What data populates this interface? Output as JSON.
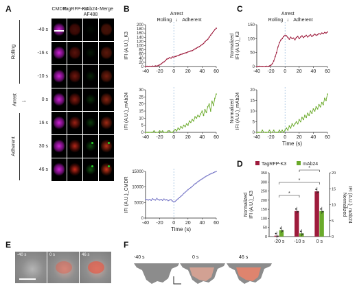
{
  "panels": {
    "A": "A",
    "B": "B",
    "C": "C",
    "D": "D",
    "E": "E",
    "F": "F"
  },
  "panel_a": {
    "columns": [
      "CMDR",
      "TagRFP-K3",
      "mAb24-\nAF488",
      "Merge"
    ],
    "times": [
      "-40 s",
      "-16 s",
      "-10 s",
      "0 s",
      "16 s",
      "30 s",
      "46 s"
    ],
    "groups": [
      "Rolling",
      "Arrest",
      "Adherent"
    ],
    "colors": {
      "cmdr": "#d020d8",
      "rfp": "#e0301e",
      "green": "#28d028"
    }
  },
  "panel_e": {
    "times": [
      "-40 s",
      "0 s",
      "46 s"
    ]
  },
  "panel_f": {
    "times": [
      "-40 s",
      "0 s",
      "46 s"
    ]
  },
  "chart_data": [
    {
      "id": "B1",
      "type": "line",
      "color": "#9e1b3c",
      "ylabel": "IFI (A.U.)_K3",
      "ylim": [
        0,
        200
      ],
      "yticks": [
        0,
        20,
        40,
        60,
        80,
        100,
        120,
        140,
        160,
        180,
        200
      ],
      "xlim": [
        -40,
        60
      ],
      "xticks": [
        -40,
        -20,
        0,
        20,
        40,
        60
      ],
      "annotations": {
        "arrest": "Arrest",
        "rolling": "Rolling",
        "adherent": "Adherent"
      },
      "x": [
        -40,
        -38,
        -36,
        -34,
        -32,
        -30,
        -28,
        -26,
        -24,
        -22,
        -20,
        -18,
        -16,
        -14,
        -12,
        -10,
        -8,
        -6,
        -4,
        -2,
        0,
        2,
        4,
        6,
        8,
        10,
        12,
        14,
        16,
        18,
        20,
        22,
        24,
        26,
        28,
        30,
        32,
        34,
        36,
        38,
        40,
        42,
        44,
        46,
        48,
        50,
        52,
        54,
        56,
        58,
        60
      ],
      "y": [
        0,
        1,
        0,
        1,
        0,
        2,
        1,
        3,
        2,
        5,
        8,
        12,
        18,
        22,
        28,
        35,
        38,
        42,
        40,
        46,
        45,
        48,
        50,
        52,
        55,
        58,
        60,
        62,
        65,
        66,
        70,
        72,
        74,
        76,
        80,
        84,
        88,
        92,
        95,
        100,
        105,
        110,
        118,
        125,
        130,
        140,
        150,
        158,
        168,
        176,
        183
      ]
    },
    {
      "id": "B2",
      "type": "line",
      "color": "#6aaa2a",
      "ylabel": "IFI (A.U.)_mAb24",
      "ylim": [
        0,
        30
      ],
      "yticks": [
        0,
        5,
        10,
        15,
        20,
        25,
        30
      ],
      "xlim": [
        -40,
        60
      ],
      "xticks": [
        -40,
        -20,
        0,
        20,
        40,
        60
      ],
      "x": [
        -40,
        -38,
        -36,
        -34,
        -32,
        -30,
        -28,
        -26,
        -24,
        -22,
        -20,
        -18,
        -16,
        -14,
        -12,
        -10,
        -8,
        -6,
        -4,
        -2,
        0,
        2,
        4,
        6,
        8,
        10,
        12,
        14,
        16,
        18,
        20,
        22,
        24,
        26,
        28,
        30,
        32,
        34,
        36,
        38,
        40,
        42,
        44,
        46,
        48,
        50,
        52,
        54,
        56,
        58,
        60
      ],
      "y": [
        0,
        0,
        0,
        0,
        0,
        0,
        1,
        0,
        0,
        0,
        1,
        0,
        1,
        0,
        0,
        0,
        1,
        1,
        0,
        0,
        1,
        2,
        1,
        3,
        2,
        4,
        3,
        5,
        4,
        6,
        5,
        8,
        7,
        9,
        8,
        11,
        10,
        12,
        11,
        13,
        15,
        12,
        16,
        14,
        18,
        20,
        15,
        22,
        19,
        24,
        27
      ]
    },
    {
      "id": "B3",
      "type": "line",
      "color": "#7a7ac8",
      "ylabel": "IFI (A.U.)_CMDR",
      "ylim": [
        0,
        15000
      ],
      "yticks": [
        0,
        5000,
        10000,
        15000
      ],
      "xlim": [
        -40,
        60
      ],
      "xticks": [
        -40,
        -20,
        0,
        20,
        40,
        60
      ],
      "xlabel": "Time (s)",
      "x": [
        -40,
        -38,
        -36,
        -34,
        -32,
        -30,
        -28,
        -26,
        -24,
        -22,
        -20,
        -18,
        -16,
        -14,
        -12,
        -10,
        -8,
        -6,
        -4,
        -2,
        0,
        2,
        4,
        6,
        8,
        10,
        12,
        14,
        16,
        18,
        20,
        22,
        24,
        26,
        28,
        30,
        32,
        34,
        36,
        38,
        40,
        42,
        44,
        46,
        48,
        50,
        52,
        54,
        56,
        58,
        60
      ],
      "y": [
        6100,
        5900,
        5800,
        6000,
        5700,
        6200,
        5900,
        5800,
        6300,
        5900,
        5800,
        6000,
        5700,
        6100,
        5800,
        5900,
        5600,
        5800,
        5900,
        5500,
        5200,
        5400,
        5800,
        6200,
        6600,
        7000,
        7400,
        7900,
        8300,
        8700,
        9100,
        9500,
        9800,
        10200,
        10600,
        11000,
        11300,
        11700,
        12000,
        12300,
        12600,
        12900,
        13200,
        13500,
        13700,
        14000,
        14200,
        14400,
        14600,
        14800,
        15000
      ]
    },
    {
      "id": "C1",
      "type": "line",
      "color": "#9e1b3c",
      "ylabel": "Normalized\nIFI (A.U.)_K3",
      "ylim": [
        0,
        150
      ],
      "yticks": [
        0,
        50,
        100,
        150
      ],
      "xlim": [
        -40,
        60
      ],
      "xticks": [
        -40,
        -20,
        0,
        20,
        40,
        60
      ],
      "annotations": {
        "arrest": "Arrest",
        "rolling": "Rolling",
        "adherent": "Adherent"
      },
      "x": [
        -40,
        -38,
        -36,
        -34,
        -32,
        -30,
        -28,
        -26,
        -24,
        -22,
        -20,
        -18,
        -16,
        -14,
        -12,
        -10,
        -8,
        -6,
        -4,
        -2,
        0,
        2,
        4,
        6,
        8,
        10,
        12,
        14,
        16,
        18,
        20,
        22,
        24,
        26,
        28,
        30,
        32,
        34,
        36,
        38,
        40,
        42,
        44,
        46,
        48,
        50,
        52,
        54,
        56,
        58,
        60
      ],
      "y": [
        0,
        0,
        1,
        0,
        0,
        0,
        0,
        1,
        0,
        2,
        5,
        10,
        20,
        35,
        50,
        70,
        85,
        95,
        100,
        108,
        112,
        110,
        104,
        98,
        105,
        100,
        102,
        96,
        104,
        108,
        100,
        106,
        110,
        104,
        108,
        112,
        106,
        110,
        114,
        108,
        112,
        116,
        112,
        114,
        118,
        116,
        120,
        118,
        122,
        120,
        124
      ]
    },
    {
      "id": "C2",
      "type": "line",
      "color": "#6aaa2a",
      "ylabel": "Normalized\nIFI (A.U.)_mAb24",
      "ylim": [
        0,
        20
      ],
      "yticks": [
        0,
        5,
        10,
        15,
        20
      ],
      "xlim": [
        -40,
        60
      ],
      "xticks": [
        -40,
        -20,
        0,
        20,
        40,
        60
      ],
      "xlabel": "Time (s)",
      "x": [
        -40,
        -38,
        -36,
        -34,
        -32,
        -30,
        -28,
        -26,
        -24,
        -22,
        -20,
        -18,
        -16,
        -14,
        -12,
        -10,
        -8,
        -6,
        -4,
        -2,
        0,
        2,
        4,
        6,
        8,
        10,
        12,
        14,
        16,
        18,
        20,
        22,
        24,
        26,
        28,
        30,
        32,
        34,
        36,
        38,
        40,
        42,
        44,
        46,
        48,
        50,
        52,
        54,
        56,
        58,
        60
      ],
      "y": [
        0,
        0,
        0,
        0,
        1,
        0,
        0,
        0,
        0,
        1,
        0,
        0,
        1,
        0,
        0,
        0,
        1,
        0,
        1,
        0,
        1,
        2,
        1,
        3,
        2,
        4,
        3,
        4,
        5,
        4,
        6,
        5,
        7,
        6,
        8,
        7,
        9,
        8,
        10,
        9,
        11,
        10,
        12,
        11,
        13,
        12,
        14,
        13,
        16,
        15,
        18
      ]
    },
    {
      "id": "D",
      "type": "bar",
      "categories": [
        "-20 s",
        "-10 s",
        "0 s"
      ],
      "series": [
        {
          "name": "TagRFP-K3",
          "color": "#9e1b3c",
          "values": [
            5,
            140,
            248
          ],
          "axis": "left"
        },
        {
          "name": "mAb24",
          "color": "#6aaa2a",
          "values": [
            2,
            1,
            8
          ],
          "axis": "right"
        }
      ],
      "ylabel_left": "Normalized\nIFI (A.U.)_K3",
      "ylim_left": [
        0,
        350
      ],
      "yticks_left": [
        0,
        50,
        100,
        150,
        200,
        250,
        300,
        350
      ],
      "ylabel_right": "Normalized\nIFI (A.U.)_mAb24",
      "ylim_right": [
        0,
        20
      ],
      "yticks_right": [
        0,
        5,
        10,
        15,
        20
      ],
      "significance": "*"
    }
  ]
}
